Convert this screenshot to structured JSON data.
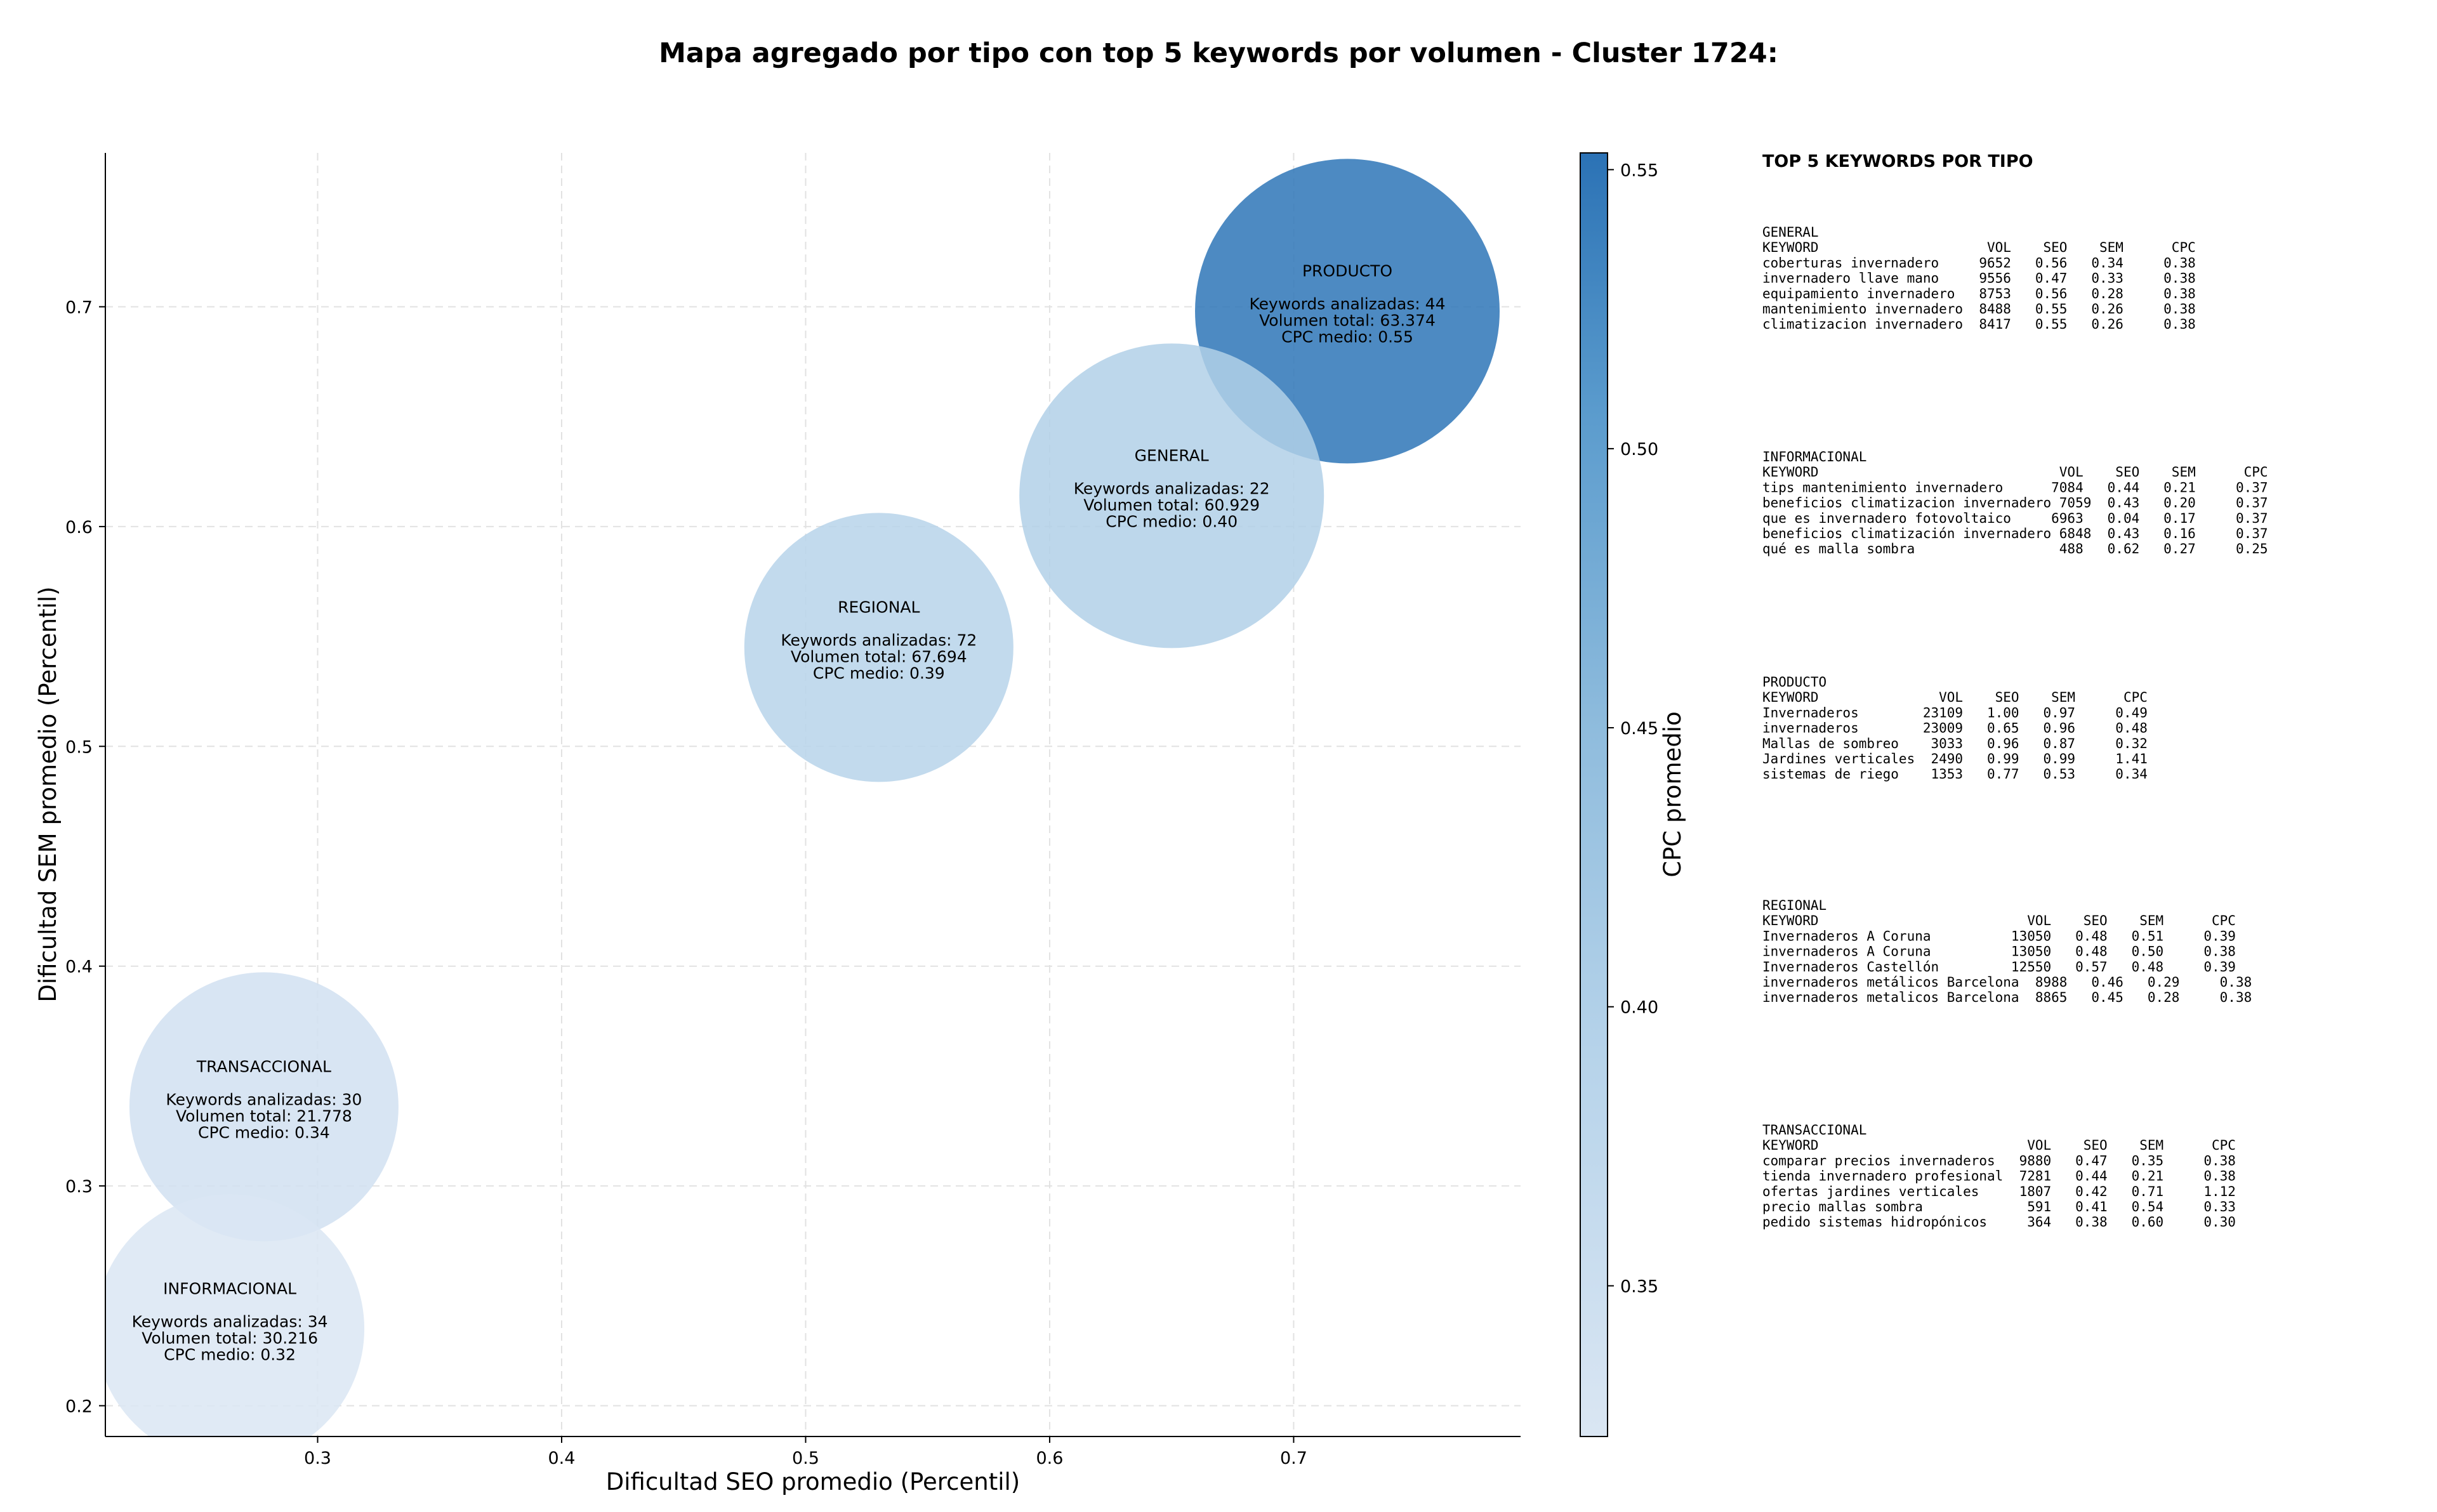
{
  "chart_data": {
    "type": "scatter",
    "title": "Mapa agregado por tipo con top 5 keywords por volumen - Cluster 1724:",
    "xlabel": "Dificultad SEO promedio (Percentil)",
    "ylabel": "Dificultad SEM promedio (Percentil)",
    "colorbar_label": "CPC promedio",
    "xlim": [
      0.213,
      0.793
    ],
    "ylim": [
      0.186,
      0.77
    ],
    "xticks": [
      "0.3",
      "0.4",
      "0.5",
      "0.6",
      "0.7"
    ],
    "yticks": [
      "0.2",
      "0.3",
      "0.4",
      "0.5",
      "0.6",
      "0.7"
    ],
    "colorbar_range": [
      0.323,
      0.553
    ],
    "colorbar_ticks": [
      "0.35",
      "0.40",
      "0.45",
      "0.50",
      "0.55"
    ],
    "grid": true,
    "points": [
      {
        "label": "PRODUCTO",
        "x": 0.722,
        "y": 0.698,
        "size": 44,
        "cpc": 0.55,
        "line1": "Keywords analizadas: 44",
        "line2": "Volumen total: 63.374",
        "line3": "CPC medio: 0.55"
      },
      {
        "label": "GENERAL",
        "x": 0.65,
        "y": 0.614,
        "size": 22,
        "cpc": 0.4,
        "line1": "Keywords analizadas: 22",
        "line2": "Volumen total: 60.929",
        "line3": "CPC medio: 0.40"
      },
      {
        "label": "REGIONAL",
        "x": 0.53,
        "y": 0.545,
        "size": 72,
        "cpc": 0.39,
        "line1": "Keywords analizadas: 72",
        "line2": "Volumen total: 67.694",
        "line3": "CPC medio: 0.39"
      },
      {
        "label": "TRANSACCIONAL",
        "x": 0.278,
        "y": 0.336,
        "size": 30,
        "cpc": 0.34,
        "line1": "Keywords analizadas: 30",
        "line2": "Volumen total: 21.778",
        "line3": "CPC medio: 0.34"
      },
      {
        "label": "INFORMACIONAL",
        "x": 0.264,
        "y": 0.235,
        "size": 34,
        "cpc": 0.32,
        "line1": "Keywords analizadas: 34",
        "line2": "Volumen total: 30.216",
        "line3": "CPC medio: 0.32"
      }
    ]
  },
  "panel": {
    "title": "TOP 5 KEYWORDS POR TIPO",
    "sections": [
      {
        "name": "GENERAL",
        "lines": [
          "KEYWORD                     VOL    SEO    SEM      CPC",
          "coberturas invernadero     9652   0.56   0.34     0.38",
          "invernadero llave mano     9556   0.47   0.33     0.38",
          "equipamiento invernadero   8753   0.56   0.28     0.38",
          "mantenimiento invernadero  8488   0.55   0.26     0.38",
          "climatizacion invernadero  8417   0.55   0.26     0.38"
        ]
      },
      {
        "name": "INFORMACIONAL",
        "lines": [
          "KEYWORD                              VOL    SEO    SEM      CPC",
          "tips mantenimiento invernadero      7084   0.44   0.21     0.37",
          "beneficios climatizacion invernadero 7059  0.43   0.20     0.37",
          "que es invernadero fotovoltaico     6963   0.04   0.17     0.37",
          "beneficios climatización invernadero 6848  0.43   0.16     0.37",
          "qué es malla sombra                  488   0.62   0.27     0.25"
        ]
      },
      {
        "name": "PRODUCTO",
        "lines": [
          "KEYWORD               VOL    SEO    SEM      CPC",
          "Invernaderos        23109   1.00   0.97     0.49",
          "invernaderos        23009   0.65   0.96     0.48",
          "Mallas de sombreo    3033   0.96   0.87     0.32",
          "Jardines verticales  2490   0.99   0.99     1.41",
          "sistemas de riego    1353   0.77   0.53     0.34"
        ]
      },
      {
        "name": "REGIONAL",
        "lines": [
          "KEYWORD                          VOL    SEO    SEM      CPC",
          "Invernaderos A Coruna          13050   0.48   0.51     0.39",
          "invernaderos A Coruna          13050   0.48   0.50     0.38",
          "Invernaderos Castellón         12550   0.57   0.48     0.39",
          "invernaderos metálicos Barcelona  8988   0.46   0.29     0.38",
          "invernaderos metalicos Barcelona  8865   0.45   0.28     0.38"
        ]
      },
      {
        "name": "TRANSACCIONAL",
        "lines": [
          "KEYWORD                          VOL    SEO    SEM      CPC",
          "comparar precios invernaderos   9880   0.47   0.35     0.38",
          "tienda invernadero profesional  7281   0.44   0.21     0.38",
          "ofertas jardines verticales     1807   0.42   0.71     1.12",
          "precio mallas sombra             591   0.41   0.54     0.33",
          "pedido sistemas hidropónicos     364   0.38   0.60     0.30"
        ]
      }
    ]
  },
  "colors": {
    "cmap_low": "#dae6f3",
    "cmap_high": "#2b72b5",
    "grid": "#e2e2e2",
    "axis": "#000000"
  }
}
